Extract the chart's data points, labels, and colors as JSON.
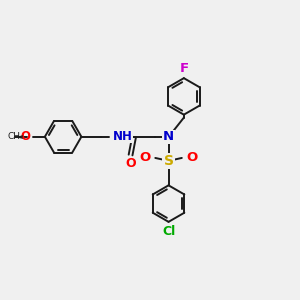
{
  "bg_color": "#f0f0f0",
  "bond_color": "#1a1a1a",
  "atom_colors": {
    "O": "#ff0000",
    "N": "#0000cc",
    "S": "#ccaa00",
    "F": "#cc00cc",
    "Cl": "#00aa00",
    "H": "#006666"
  },
  "figsize": [
    3.0,
    3.0
  ],
  "dpi": 100,
  "lw": 1.4,
  "r_ring": 0.62
}
